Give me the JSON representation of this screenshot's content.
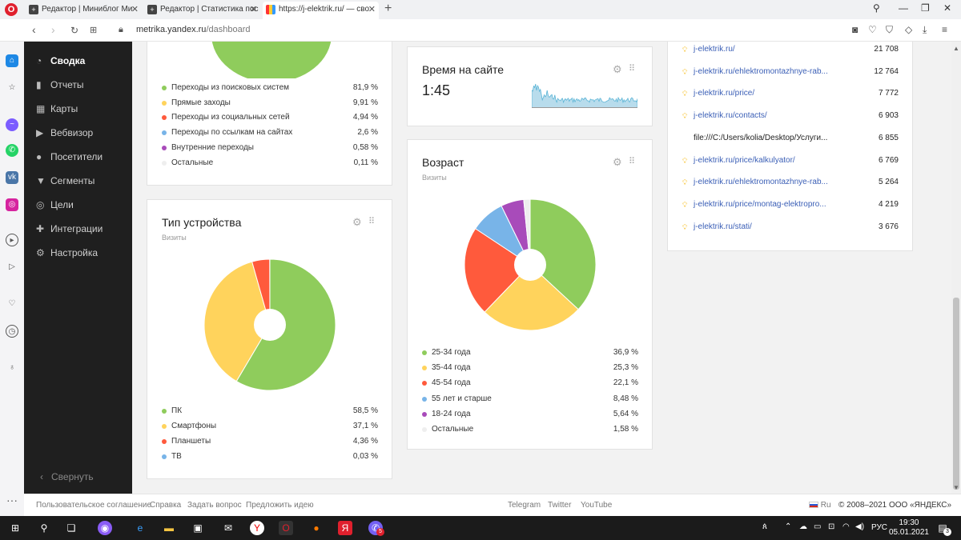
{
  "browser": {
    "tabs": [
      {
        "title": "Редактор | Миниблог Ми",
        "icon": "plus-square-icon"
      },
      {
        "title": "Редактор | Статистика пос",
        "icon": "plus-square-icon"
      },
      {
        "title": "https://j-elektrik.ru/ — сво",
        "icon": "metrika-icon"
      }
    ],
    "address_host": "metrika.yandex.ru",
    "address_path": "/dashboard"
  },
  "sidebar": {
    "items": [
      {
        "label": "Сводка",
        "icon": "dashboard-icon"
      },
      {
        "label": "Отчеты",
        "icon": "bar-chart-icon"
      },
      {
        "label": "Карты",
        "icon": "map-icon"
      },
      {
        "label": "Вебвизор",
        "icon": "play-icon"
      },
      {
        "label": "Посетители",
        "icon": "user-icon"
      },
      {
        "label": "Сегменты",
        "icon": "filter-icon"
      },
      {
        "label": "Цели",
        "icon": "target-icon"
      },
      {
        "label": "Интеграции",
        "icon": "puzzle-icon"
      },
      {
        "label": "Настройка",
        "icon": "gear-icon"
      }
    ],
    "collapse_label": "Свернуть"
  },
  "sources": {
    "rows": [
      {
        "label": "Переходы из поисковых систем",
        "value": "81,9 %",
        "color": "#8fcc5c"
      },
      {
        "label": "Прямые заходы",
        "value": "9,91 %",
        "color": "#ffd35c"
      },
      {
        "label": "Переходы из социальных сетей",
        "value": "4,94 %",
        "color": "#ff5a3c"
      },
      {
        "label": "Переходы по ссылкам на сайтах",
        "value": "2,6 %",
        "color": "#78b4e8"
      },
      {
        "label": "Внутренние переходы",
        "value": "0,58 %",
        "color": "#a84bba"
      },
      {
        "label": "Остальные",
        "value": "0,11 %",
        "color": "#eeeeee"
      }
    ]
  },
  "device": {
    "title": "Тип устройства",
    "subtitle": "Визиты",
    "rows": [
      {
        "label": "ПК",
        "value": "58,5 %",
        "color": "#8fcc5c"
      },
      {
        "label": "Смартфоны",
        "value": "37,1 %",
        "color": "#ffd35c"
      },
      {
        "label": "Планшеты",
        "value": "4,36 %",
        "color": "#ff5a3c"
      },
      {
        "label": "ТВ",
        "value": "0,03 %",
        "color": "#78b4e8"
      }
    ]
  },
  "time_on_site": {
    "title": "Время на сайте",
    "value": "1:45",
    "spark_color": "#5ab4d6"
  },
  "age": {
    "title": "Возраст",
    "subtitle": "Визиты",
    "rows": [
      {
        "label": "25-34 года",
        "value": "36,9 %",
        "color": "#8fcc5c"
      },
      {
        "label": "35-44 года",
        "value": "25,3 %",
        "color": "#ffd35c"
      },
      {
        "label": "45-54 года",
        "value": "22,1 %",
        "color": "#ff5a3c"
      },
      {
        "label": "55 лет и старше",
        "value": "8,48 %",
        "color": "#78b4e8"
      },
      {
        "label": "18-24 года",
        "value": "5,64 %",
        "color": "#a84bba"
      },
      {
        "label": "Остальные",
        "value": "1,58 %",
        "color": "#eeeeee"
      }
    ]
  },
  "pages": {
    "rows": [
      {
        "url": "j-elektrik.ru/",
        "value": "21 708",
        "link": true
      },
      {
        "url": "j-elektrik.ru/ehlektromontazhnye-rab...",
        "value": "12 764",
        "link": true
      },
      {
        "url": "j-elektrik.ru/price/",
        "value": "7 772",
        "link": true
      },
      {
        "url": "j-elektrik.ru/contacts/",
        "value": "6 903",
        "link": true
      },
      {
        "url": "file:///C:/Users/kolia/Desktop/Услуги...",
        "value": "6 855",
        "link": false
      },
      {
        "url": "j-elektrik.ru/price/kalkulyator/",
        "value": "6 769",
        "link": true
      },
      {
        "url": "j-elektrik.ru/ehlektromontazhnye-rab...",
        "value": "5 264",
        "link": true
      },
      {
        "url": "j-elektrik.ru/price/montag-elektropro...",
        "value": "4 219",
        "link": true
      },
      {
        "url": "j-elektrik.ru/stati/",
        "value": "3 676",
        "link": true
      }
    ]
  },
  "footer": {
    "links": [
      "Пользовательское соглашение",
      "Справка",
      "Задать вопрос",
      "Предложить идею"
    ],
    "social": [
      "Telegram",
      "Twitter",
      "YouTube"
    ],
    "lang": "Ru",
    "copyright": "© 2008–2021 ООО «ЯНДЕКС»"
  },
  "taskbar": {
    "lang": "РУС",
    "time": "19:30",
    "date": "05.01.2021",
    "viber_badge": "5",
    "notif_badge": "3"
  }
}
